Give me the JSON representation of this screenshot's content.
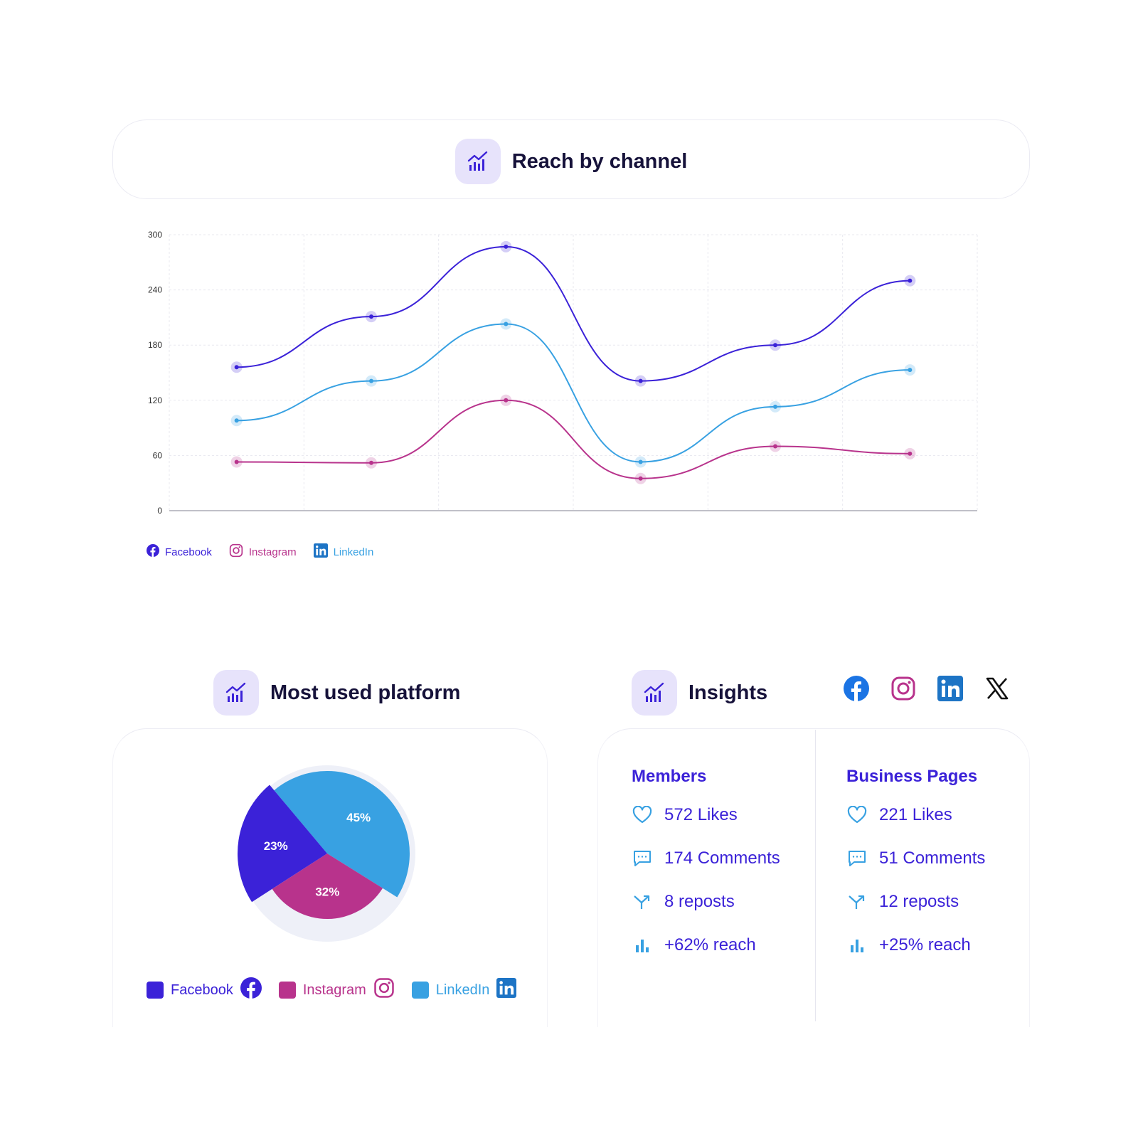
{
  "header": {
    "title": "Reach by channel"
  },
  "chart_data": [
    {
      "type": "line",
      "title": "Reach by channel",
      "categories": [
        "1",
        "2",
        "3",
        "4",
        "5",
        "6"
      ],
      "series": [
        {
          "name": "Facebook",
          "color": "#3b22d8",
          "values": [
            156,
            211,
            287,
            141,
            180,
            250
          ]
        },
        {
          "name": "Instagram",
          "color": "#b8338c",
          "values": [
            53,
            52,
            120,
            35,
            70,
            62
          ]
        },
        {
          "name": "LinkedIn",
          "color": "#38a1e2",
          "values": [
            98,
            141,
            203,
            53,
            113,
            153
          ]
        }
      ],
      "ylim": [
        0,
        300
      ],
      "yticks": [
        "0",
        "60",
        "120",
        "180",
        "240",
        "300"
      ],
      "grid": true,
      "legend": "bottom-left"
    },
    {
      "type": "pie",
      "title": "Most used platform",
      "series": [
        {
          "name": "Facebook",
          "value": 23,
          "label": "23%",
          "color": "#3b22d8"
        },
        {
          "name": "Instagram",
          "value": 32,
          "label": "32%",
          "color": "#b8338c"
        },
        {
          "name": "LinkedIn",
          "value": 45,
          "label": "45%",
          "color": "#38a1e2"
        }
      ],
      "legend": "bottom"
    }
  ],
  "legend_top": {
    "facebook": "Facebook",
    "instagram": "Instagram",
    "linkedin": "LinkedIn"
  },
  "platform_section": {
    "title": "Most used platform",
    "legend": {
      "facebook": "Facebook",
      "instagram": "Instagram",
      "linkedin": "LinkedIn"
    }
  },
  "insights": {
    "title": "Insights",
    "social_icons": [
      "facebook-icon",
      "instagram-icon",
      "linkedin-icon",
      "x-icon"
    ],
    "members": {
      "title": "Members",
      "likes": "572 Likes",
      "comments": "174 Comments",
      "reposts": "8 reposts",
      "reach": "+62% reach"
    },
    "business": {
      "title": "Business Pages",
      "likes": "221 Likes",
      "comments": "51 Comments",
      "reposts": "12 reposts",
      "reach": "+25% reach"
    }
  },
  "colors": {
    "facebook": "#3b22d8",
    "instagram": "#b8338c",
    "linkedin": "#38a1e2",
    "accent_tile": "#e7e3fb",
    "title": "#16123a"
  }
}
